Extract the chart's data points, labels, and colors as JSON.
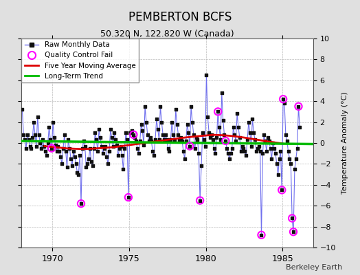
{
  "title": "PEMBERTON BCFS",
  "subtitle": "50.320 N, 122.820 W (Canada)",
  "ylabel": "Temperature Anomaly (°C)",
  "watermark": "Berkeley Earth",
  "xlim": [
    1968.0,
    1987.0
  ],
  "ylim": [
    -10,
    10
  ],
  "yticks": [
    -10,
    -8,
    -6,
    -4,
    -2,
    0,
    2,
    4,
    6,
    8,
    10
  ],
  "xticks": [
    1970,
    1975,
    1980,
    1985
  ],
  "bg_color": "#e0e0e0",
  "plot_bg_color": "#ffffff",
  "raw_line_color": "#7070ee",
  "raw_marker_color": "#111111",
  "ma_color": "#dd0000",
  "trend_color": "#00bb00",
  "qc_color": "#ff00ff",
  "raw_data": [
    [
      1968.042,
      3.2
    ],
    [
      1968.125,
      0.8
    ],
    [
      1968.208,
      0.3
    ],
    [
      1968.292,
      -0.5
    ],
    [
      1968.375,
      0.8
    ],
    [
      1968.458,
      0.3
    ],
    [
      1968.542,
      -0.3
    ],
    [
      1968.625,
      -0.5
    ],
    [
      1968.708,
      0.5
    ],
    [
      1968.792,
      2.0
    ],
    [
      1968.875,
      0.8
    ],
    [
      1968.958,
      -0.3
    ],
    [
      1969.042,
      2.5
    ],
    [
      1969.125,
      0.8
    ],
    [
      1969.208,
      0.0
    ],
    [
      1969.292,
      -0.5
    ],
    [
      1969.375,
      0.3
    ],
    [
      1969.458,
      -0.3
    ],
    [
      1969.542,
      -0.8
    ],
    [
      1969.625,
      -1.2
    ],
    [
      1969.708,
      0.0
    ],
    [
      1969.792,
      1.5
    ],
    [
      1969.875,
      0.3
    ],
    [
      1969.958,
      -0.5
    ],
    [
      1970.042,
      2.0
    ],
    [
      1970.125,
      0.5
    ],
    [
      1970.208,
      -0.2
    ],
    [
      1970.292,
      -0.8
    ],
    [
      1970.375,
      -0.3
    ],
    [
      1970.458,
      -0.8
    ],
    [
      1970.542,
      -1.3
    ],
    [
      1970.625,
      -2.0
    ],
    [
      1970.708,
      -0.5
    ],
    [
      1970.792,
      0.8
    ],
    [
      1970.875,
      -0.8
    ],
    [
      1970.958,
      -2.3
    ],
    [
      1971.042,
      0.3
    ],
    [
      1971.125,
      -0.5
    ],
    [
      1971.208,
      -1.5
    ],
    [
      1971.292,
      -2.2
    ],
    [
      1971.375,
      -0.8
    ],
    [
      1971.458,
      -1.3
    ],
    [
      1971.542,
      -2.0
    ],
    [
      1971.625,
      -2.8
    ],
    [
      1971.708,
      -3.0
    ],
    [
      1971.792,
      -1.2
    ],
    [
      1971.875,
      -5.8
    ],
    [
      1971.958,
      -0.5
    ],
    [
      1972.042,
      0.2
    ],
    [
      1972.125,
      -0.3
    ],
    [
      1972.208,
      -2.3
    ],
    [
      1972.292,
      -2.0
    ],
    [
      1972.375,
      -1.5
    ],
    [
      1972.458,
      -0.5
    ],
    [
      1972.542,
      -1.8
    ],
    [
      1972.625,
      -2.2
    ],
    [
      1972.708,
      -0.5
    ],
    [
      1972.792,
      1.0
    ],
    [
      1972.875,
      0.3
    ],
    [
      1972.958,
      -0.8
    ],
    [
      1973.042,
      1.3
    ],
    [
      1973.125,
      0.5
    ],
    [
      1973.208,
      -0.3
    ],
    [
      1973.292,
      -1.0
    ],
    [
      1973.375,
      -0.5
    ],
    [
      1973.458,
      -0.3
    ],
    [
      1973.542,
      -1.3
    ],
    [
      1973.625,
      -2.0
    ],
    [
      1973.708,
      -0.8
    ],
    [
      1973.792,
      1.3
    ],
    [
      1973.875,
      0.5
    ],
    [
      1973.958,
      -0.3
    ],
    [
      1974.042,
      1.0
    ],
    [
      1974.125,
      0.3
    ],
    [
      1974.208,
      -0.2
    ],
    [
      1974.292,
      -1.2
    ],
    [
      1974.375,
      -0.5
    ],
    [
      1974.458,
      -0.3
    ],
    [
      1974.542,
      -1.2
    ],
    [
      1974.625,
      -2.5
    ],
    [
      1974.708,
      -0.5
    ],
    [
      1974.792,
      1.0
    ],
    [
      1974.875,
      0.3
    ],
    [
      1974.958,
      -5.2
    ],
    [
      1975.042,
      1.0
    ],
    [
      1975.125,
      1.0
    ],
    [
      1975.208,
      1.2
    ],
    [
      1975.292,
      0.8
    ],
    [
      1975.375,
      0.5
    ],
    [
      1975.458,
      0.2
    ],
    [
      1975.542,
      -0.5
    ],
    [
      1975.625,
      -1.0
    ],
    [
      1975.708,
      0.2
    ],
    [
      1975.792,
      1.8
    ],
    [
      1975.875,
      1.2
    ],
    [
      1975.958,
      -0.2
    ],
    [
      1976.042,
      3.5
    ],
    [
      1976.125,
      2.0
    ],
    [
      1976.208,
      0.8
    ],
    [
      1976.292,
      0.2
    ],
    [
      1976.375,
      0.5
    ],
    [
      1976.458,
      0.2
    ],
    [
      1976.542,
      -0.8
    ],
    [
      1976.625,
      -1.2
    ],
    [
      1976.708,
      0.3
    ],
    [
      1976.792,
      2.3
    ],
    [
      1976.875,
      1.3
    ],
    [
      1976.958,
      0.3
    ],
    [
      1977.042,
      3.5
    ],
    [
      1977.125,
      2.0
    ],
    [
      1977.208,
      0.8
    ],
    [
      1977.292,
      0.3
    ],
    [
      1977.375,
      0.8
    ],
    [
      1977.458,
      0.3
    ],
    [
      1977.542,
      -0.5
    ],
    [
      1977.625,
      -0.8
    ],
    [
      1977.708,
      0.3
    ],
    [
      1977.792,
      2.0
    ],
    [
      1977.875,
      0.8
    ],
    [
      1977.958,
      0.2
    ],
    [
      1978.042,
      3.2
    ],
    [
      1978.125,
      1.8
    ],
    [
      1978.208,
      0.8
    ],
    [
      1978.292,
      0.3
    ],
    [
      1978.375,
      0.5
    ],
    [
      1978.458,
      0.2
    ],
    [
      1978.542,
      -0.8
    ],
    [
      1978.625,
      -1.5
    ],
    [
      1978.708,
      0.2
    ],
    [
      1978.792,
      1.8
    ],
    [
      1978.875,
      1.0
    ],
    [
      1978.958,
      -0.3
    ],
    [
      1979.042,
      3.5
    ],
    [
      1979.125,
      2.0
    ],
    [
      1979.208,
      0.8
    ],
    [
      1979.292,
      -0.5
    ],
    [
      1979.375,
      0.5
    ],
    [
      1979.458,
      0.3
    ],
    [
      1979.542,
      -1.0
    ],
    [
      1979.625,
      -5.5
    ],
    [
      1979.708,
      -2.2
    ],
    [
      1979.792,
      1.0
    ],
    [
      1979.875,
      0.3
    ],
    [
      1979.958,
      -0.3
    ],
    [
      1980.042,
      6.5
    ],
    [
      1980.125,
      2.5
    ],
    [
      1980.208,
      1.0
    ],
    [
      1980.292,
      0.5
    ],
    [
      1980.375,
      0.8
    ],
    [
      1980.458,
      0.3
    ],
    [
      1980.542,
      -0.5
    ],
    [
      1980.625,
      -1.0
    ],
    [
      1980.708,
      0.5
    ],
    [
      1980.792,
      3.0
    ],
    [
      1980.875,
      1.5
    ],
    [
      1980.958,
      0.3
    ],
    [
      1981.042,
      4.8
    ],
    [
      1981.125,
      2.2
    ],
    [
      1981.208,
      0.8
    ],
    [
      1981.292,
      0.2
    ],
    [
      1981.375,
      -0.5
    ],
    [
      1981.458,
      -1.0
    ],
    [
      1981.542,
      -1.5
    ],
    [
      1981.625,
      -1.0
    ],
    [
      1981.708,
      -0.5
    ],
    [
      1981.792,
      1.5
    ],
    [
      1981.875,
      0.8
    ],
    [
      1981.958,
      0.2
    ],
    [
      1982.042,
      2.8
    ],
    [
      1982.125,
      1.5
    ],
    [
      1982.208,
      0.5
    ],
    [
      1982.292,
      -0.8
    ],
    [
      1982.375,
      -0.3
    ],
    [
      1982.458,
      -0.5
    ],
    [
      1982.542,
      -0.8
    ],
    [
      1982.625,
      -1.2
    ],
    [
      1982.708,
      0.3
    ],
    [
      1982.792,
      2.0
    ],
    [
      1982.875,
      1.0
    ],
    [
      1982.958,
      -0.3
    ],
    [
      1983.042,
      2.3
    ],
    [
      1983.125,
      1.0
    ],
    [
      1983.208,
      0.3
    ],
    [
      1983.292,
      -0.8
    ],
    [
      1983.375,
      -0.5
    ],
    [
      1983.458,
      -0.3
    ],
    [
      1983.542,
      -0.8
    ],
    [
      1983.625,
      -8.8
    ],
    [
      1983.708,
      -1.0
    ],
    [
      1983.792,
      0.8
    ],
    [
      1983.875,
      0.2
    ],
    [
      1983.958,
      -0.8
    ],
    [
      1984.042,
      0.5
    ],
    [
      1984.125,
      0.2
    ],
    [
      1984.208,
      -0.5
    ],
    [
      1984.292,
      -1.5
    ],
    [
      1984.375,
      0.0
    ],
    [
      1984.458,
      -0.5
    ],
    [
      1984.542,
      -1.0
    ],
    [
      1984.625,
      -2.0
    ],
    [
      1984.708,
      -3.0
    ],
    [
      1984.792,
      -1.5
    ],
    [
      1984.875,
      -0.8
    ],
    [
      1984.958,
      -4.5
    ],
    [
      1985.042,
      4.2
    ],
    [
      1985.125,
      3.8
    ],
    [
      1985.208,
      0.8
    ],
    [
      1985.292,
      0.2
    ],
    [
      1985.375,
      -0.8
    ],
    [
      1985.458,
      -1.5
    ],
    [
      1985.542,
      -2.0
    ],
    [
      1985.625,
      -7.2
    ],
    [
      1985.708,
      -8.5
    ],
    [
      1985.792,
      -2.5
    ],
    [
      1985.875,
      -1.5
    ],
    [
      1985.958,
      -0.5
    ],
    [
      1986.042,
      3.5
    ],
    [
      1986.125,
      1.5
    ]
  ],
  "qc_fail_points": [
    [
      1969.958,
      -0.5
    ],
    [
      1971.875,
      -5.8
    ],
    [
      1974.958,
      -5.2
    ],
    [
      1975.292,
      0.8
    ],
    [
      1978.958,
      -0.3
    ],
    [
      1979.625,
      -5.5
    ],
    [
      1980.792,
      3.0
    ],
    [
      1981.292,
      0.2
    ],
    [
      1983.625,
      -8.8
    ],
    [
      1984.958,
      -4.5
    ],
    [
      1985.042,
      4.2
    ],
    [
      1985.625,
      -7.2
    ],
    [
      1985.708,
      -8.5
    ],
    [
      1986.042,
      3.5
    ]
  ],
  "moving_avg": [
    [
      1969.5,
      -0.3
    ],
    [
      1970.0,
      -0.38
    ],
    [
      1970.5,
      -0.45
    ],
    [
      1971.0,
      -0.52
    ],
    [
      1971.5,
      -0.55
    ],
    [
      1972.0,
      -0.58
    ],
    [
      1972.5,
      -0.55
    ],
    [
      1973.0,
      -0.5
    ],
    [
      1973.5,
      -0.45
    ],
    [
      1974.0,
      -0.4
    ],
    [
      1974.5,
      -0.3
    ],
    [
      1975.0,
      -0.2
    ],
    [
      1975.5,
      -0.1
    ],
    [
      1976.0,
      0.0
    ],
    [
      1976.5,
      0.1
    ],
    [
      1977.0,
      0.2
    ],
    [
      1977.5,
      0.3
    ],
    [
      1978.0,
      0.4
    ],
    [
      1978.5,
      0.5
    ],
    [
      1979.0,
      0.58
    ],
    [
      1979.5,
      0.65
    ],
    [
      1980.0,
      0.72
    ],
    [
      1980.5,
      0.78
    ],
    [
      1981.0,
      0.75
    ],
    [
      1981.5,
      0.7
    ],
    [
      1982.0,
      0.62
    ],
    [
      1982.5,
      0.52
    ],
    [
      1983.0,
      0.4
    ],
    [
      1983.5,
      0.28
    ],
    [
      1984.0,
      0.15
    ],
    [
      1984.5,
      0.05
    ],
    [
      1985.0,
      -0.05
    ]
  ],
  "trend_x": [
    1968.0,
    1987.0
  ],
  "trend_y": [
    0.18,
    -0.1
  ]
}
